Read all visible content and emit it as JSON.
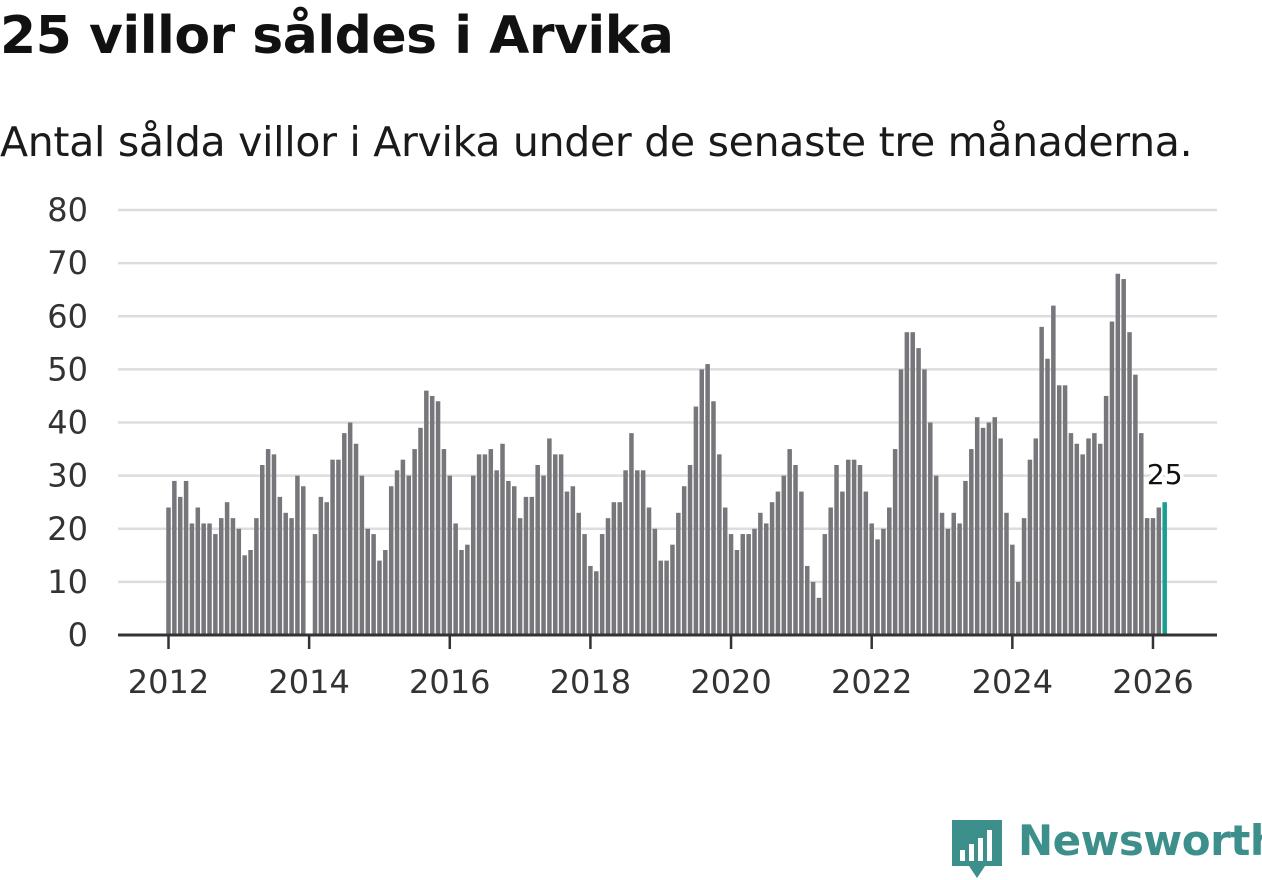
{
  "title": "25 villor såldes i Arvika",
  "subtitle": "Antal sålda villor i Arvika under de senaste tre månaderna.",
  "brand": {
    "name": "Newsworthy",
    "color": "#3d8f8c",
    "icon": "bar-chart-speech-bubble-icon"
  },
  "colors": {
    "bar": "#76767b",
    "highlight": "#1a9e94",
    "grid": "#dddddd",
    "axis": "#333333"
  },
  "chart_data": {
    "type": "bar",
    "title": "25 villor såldes i Arvika",
    "xlabel": "",
    "ylabel": "",
    "ylim": [
      0,
      80
    ],
    "yticks": [
      0,
      10,
      20,
      30,
      40,
      50,
      60,
      70,
      80
    ],
    "xticks": [
      "2012",
      "2014",
      "2016",
      "2018",
      "2020",
      "2022",
      "2024",
      "2026"
    ],
    "start": "2012-01",
    "frequency": "monthly (rolling three-month total)",
    "highlight_index": 170,
    "highlight_label": "25",
    "values": [
      24,
      29,
      26,
      29,
      21,
      24,
      21,
      21,
      19,
      22,
      25,
      22,
      20,
      15,
      16,
      22,
      32,
      35,
      34,
      26,
      23,
      22,
      30,
      28,
      null,
      19,
      26,
      25,
      33,
      33,
      38,
      40,
      36,
      30,
      20,
      19,
      14,
      16,
      28,
      31,
      33,
      30,
      35,
      39,
      46,
      45,
      44,
      35,
      30,
      21,
      16,
      17,
      30,
      34,
      34,
      35,
      31,
      36,
      29,
      28,
      22,
      26,
      26,
      32,
      30,
      37,
      34,
      34,
      27,
      28,
      23,
      19,
      13,
      12,
      19,
      22,
      25,
      25,
      31,
      38,
      31,
      31,
      24,
      20,
      14,
      14,
      17,
      23,
      28,
      32,
      43,
      50,
      51,
      44,
      34,
      24,
      19,
      16,
      19,
      19,
      20,
      23,
      21,
      25,
      27,
      30,
      35,
      32,
      27,
      13,
      10,
      7,
      19,
      24,
      32,
      27,
      33,
      33,
      32,
      27,
      21,
      18,
      20,
      24,
      35,
      50,
      57,
      57,
      54,
      50,
      40,
      30,
      23,
      20,
      23,
      21,
      29,
      35,
      41,
      39,
      40,
      41,
      37,
      23,
      17,
      10,
      22,
      33,
      37,
      58,
      52,
      62,
      47,
      47,
      38,
      36,
      34,
      37,
      38,
      36,
      45,
      59,
      68,
      67,
      57,
      49,
      38,
      22,
      22,
      24,
      25
    ]
  }
}
